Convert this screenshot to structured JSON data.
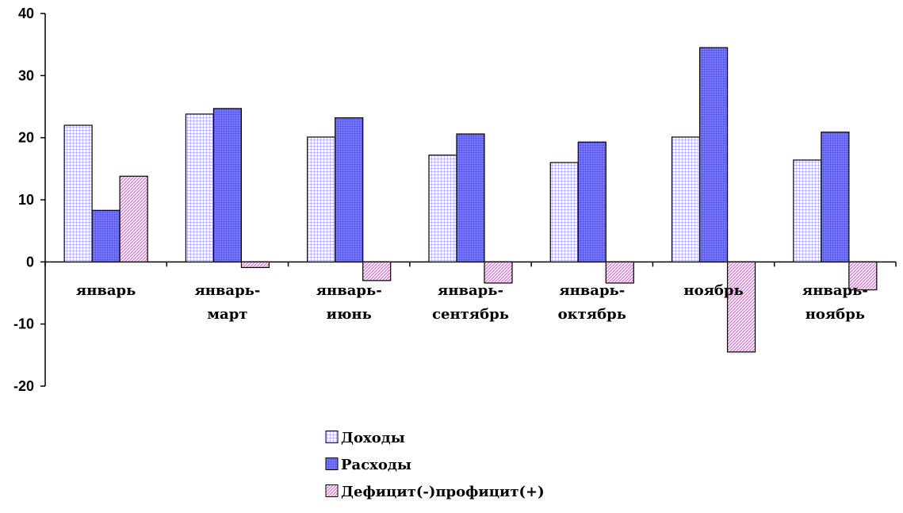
{
  "chart_data": {
    "type": "bar",
    "title": "",
    "xlabel": "",
    "ylabel": "",
    "ylim": [
      -20,
      40
    ],
    "yticks": [
      -20,
      -10,
      0,
      10,
      20,
      30,
      40
    ],
    "grid": false,
    "legend_position": "bottom-center",
    "categories": [
      [
        "январь"
      ],
      [
        "январь-",
        "март"
      ],
      [
        "январь-",
        "июнь"
      ],
      [
        "январь-",
        "сентябрь"
      ],
      [
        "январь-",
        "октябрь"
      ],
      [
        "ноябрь"
      ],
      [
        "январь-",
        "ноябрь"
      ]
    ],
    "series": [
      {
        "name": "Доходы",
        "values": [
          22.0,
          23.8,
          20.1,
          17.2,
          16.0,
          20.1,
          16.4
        ],
        "color": "#ccccff",
        "pattern": "grid"
      },
      {
        "name": "Расходы",
        "values": [
          8.3,
          24.7,
          23.2,
          20.6,
          19.3,
          34.5,
          20.9
        ],
        "color": "#6666ff",
        "pattern": "fine-grid"
      },
      {
        "name": "Дефицит(-)профицит(+)",
        "values": [
          13.8,
          -0.9,
          -3.0,
          -3.4,
          -3.4,
          -14.5,
          -4.5
        ],
        "color": "#ffccff",
        "pattern": "diagonal"
      }
    ]
  }
}
